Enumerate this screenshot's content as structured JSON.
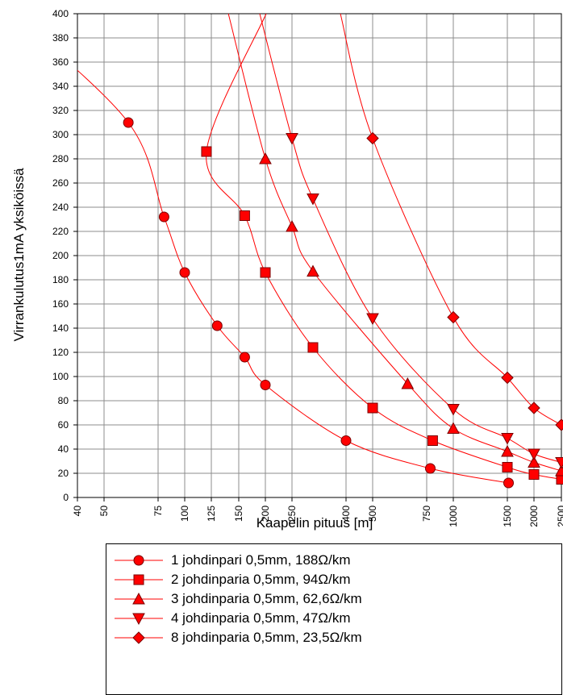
{
  "chart_data": {
    "type": "line",
    "title": "",
    "xlabel": "Kaapelin pituus [m]",
    "ylabel": "Virrankulutus1mA yksiköissä",
    "x_tick_labels": [
      "40",
      "50",
      "75",
      "100",
      "125",
      "150",
      "200",
      "250",
      "400",
      "500",
      "750",
      "1000",
      "1500",
      "2000",
      "2500"
    ],
    "y_ticks": [
      0,
      20,
      40,
      60,
      80,
      100,
      120,
      140,
      160,
      180,
      200,
      220,
      240,
      260,
      280,
      300,
      320,
      340,
      360,
      380,
      400
    ],
    "ylim": [
      0,
      400
    ],
    "grid": true,
    "legend_position": "bottom",
    "line_color": "#ff0000",
    "marker_fill": "#ff0000",
    "series": [
      {
        "name": "1 johdinpari 0,5mm, 188Ω/km",
        "marker": "circle",
        "points": [
          [
            0,
            400
          ],
          [
            60,
            310
          ],
          [
            80,
            232
          ],
          [
            100,
            186
          ],
          [
            130,
            142
          ],
          [
            160,
            116
          ],
          [
            200,
            93
          ],
          [
            400,
            47
          ],
          [
            780,
            24
          ],
          [
            1520,
            12
          ]
        ]
      },
      {
        "name": "2 johdinparia 0,5mm, 94Ω/km",
        "marker": "square",
        "points": [
          [
            120,
            286
          ],
          [
            160,
            233
          ],
          [
            200,
            186
          ],
          [
            300,
            124
          ],
          [
            500,
            74
          ],
          [
            800,
            47
          ],
          [
            1500,
            25
          ],
          [
            2000,
            19
          ],
          [
            2500,
            15
          ]
        ]
      },
      {
        "name": "3 johdinparia 0,5mm, 62,6Ω/km",
        "marker": "triangle-up",
        "points": [
          [
            140,
            400
          ],
          [
            200,
            280
          ],
          [
            250,
            224
          ],
          [
            300,
            187
          ],
          [
            650,
            94
          ],
          [
            1000,
            57
          ],
          [
            1500,
            38
          ],
          [
            2000,
            29
          ],
          [
            2500,
            22
          ]
        ]
      },
      {
        "name": "4 johdinparia 0,5mm, 47Ω/km",
        "marker": "triangle-down",
        "points": [
          [
            250,
            297
          ],
          [
            300,
            247
          ],
          [
            500,
            148
          ],
          [
            1000,
            73
          ],
          [
            1500,
            49
          ],
          [
            2000,
            36
          ],
          [
            2500,
            29
          ]
        ]
      },
      {
        "name": "8 johdinparia 0,5mm, 23,5Ω/km",
        "marker": "diamond",
        "points": [
          [
            500,
            297
          ],
          [
            1000,
            149
          ],
          [
            1500,
            99
          ],
          [
            2000,
            74
          ],
          [
            2500,
            60
          ]
        ]
      }
    ]
  }
}
